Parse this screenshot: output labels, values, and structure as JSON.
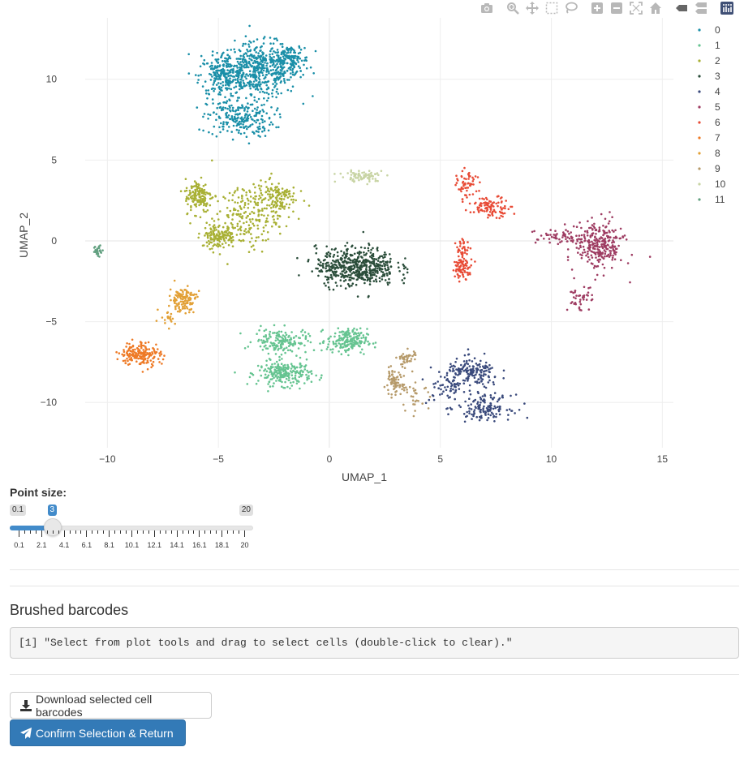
{
  "modebar": {
    "buttons": [
      {
        "name": "camera-icon"
      },
      {
        "name": "zoom-icon"
      },
      {
        "name": "pan-icon"
      },
      {
        "name": "box-select-icon"
      },
      {
        "name": "lasso-select-icon"
      },
      {
        "name": "zoom-in-icon"
      },
      {
        "name": "zoom-out-icon"
      },
      {
        "name": "autoscale-icon"
      },
      {
        "name": "reset-axes-icon"
      },
      {
        "name": "hover-closest-icon"
      },
      {
        "name": "hover-compare-icon"
      },
      {
        "name": "plotly-logo-icon"
      }
    ]
  },
  "plot": {
    "xlabel": "UMAP_1",
    "ylabel": "UMAP_2",
    "x_ticks": [
      "−10",
      "−5",
      "0",
      "5",
      "10",
      "15"
    ],
    "y_ticks": [
      "10",
      "5",
      "0",
      "−5",
      "−10"
    ]
  },
  "chart_data": {
    "type": "scatter",
    "xlabel": "UMAP_1",
    "ylabel": "UMAP_2",
    "xlim": [
      -11,
      15.5
    ],
    "ylim": [
      -12.8,
      13.8
    ],
    "x_tick_values": [
      -10,
      -5,
      0,
      5,
      10,
      15
    ],
    "y_tick_values": [
      10,
      5,
      0,
      -5,
      -10
    ],
    "grid": true,
    "legend_position": "top-right",
    "series": [
      {
        "name": "0",
        "color": "#1a8fa8",
        "clusters": [
          {
            "cx": -3.2,
            "cy": 10.6,
            "sx": 1.2,
            "sy": 1.1,
            "n": 500
          },
          {
            "cx": -4.8,
            "cy": 10.2,
            "sx": 0.7,
            "sy": 0.9,
            "n": 200
          },
          {
            "cx": -4.0,
            "cy": 7.6,
            "sx": 1.0,
            "sy": 0.8,
            "n": 230
          },
          {
            "cx": -1.8,
            "cy": 11.2,
            "sx": 0.6,
            "sy": 0.6,
            "n": 130
          }
        ]
      },
      {
        "name": "1",
        "color": "#66c491",
        "clusters": [
          {
            "cx": -2.0,
            "cy": -8.2,
            "sx": 0.8,
            "sy": 0.5,
            "n": 240
          },
          {
            "cx": -2.2,
            "cy": -6.2,
            "sx": 0.8,
            "sy": 0.5,
            "n": 160
          },
          {
            "cx": 0.8,
            "cy": -6.2,
            "sx": 0.6,
            "sy": 0.5,
            "n": 190
          }
        ]
      },
      {
        "name": "2",
        "color": "#a8b034",
        "clusters": [
          {
            "cx": -5.9,
            "cy": 2.8,
            "sx": 0.4,
            "sy": 0.7,
            "n": 140
          },
          {
            "cx": -5.0,
            "cy": 0.3,
            "sx": 0.5,
            "sy": 0.5,
            "n": 130
          },
          {
            "cx": -3.8,
            "cy": 1.5,
            "sx": 1.0,
            "sy": 1.3,
            "n": 200
          },
          {
            "cx": -2.4,
            "cy": 2.7,
            "sx": 0.6,
            "sy": 0.7,
            "n": 140
          }
        ]
      },
      {
        "name": "3",
        "color": "#2a4d3a",
        "clusters": [
          {
            "cx": 1.2,
            "cy": -1.6,
            "sx": 1.2,
            "sy": 0.8,
            "n": 520
          }
        ]
      },
      {
        "name": "4",
        "color": "#3a4a7c",
        "clusters": [
          {
            "cx": 6.5,
            "cy": -8.2,
            "sx": 0.8,
            "sy": 0.6,
            "n": 170
          },
          {
            "cx": 7.0,
            "cy": -10.3,
            "sx": 0.8,
            "sy": 0.5,
            "n": 140
          },
          {
            "cx": 5.3,
            "cy": -9.0,
            "sx": 0.6,
            "sy": 0.8,
            "n": 60
          }
        ]
      },
      {
        "name": "5",
        "color": "#9e3c62",
        "clusters": [
          {
            "cx": 12.2,
            "cy": -0.3,
            "sx": 0.7,
            "sy": 1.0,
            "n": 260
          },
          {
            "cx": 10.5,
            "cy": 0.2,
            "sx": 0.8,
            "sy": 0.4,
            "n": 70
          },
          {
            "cx": 11.3,
            "cy": -3.6,
            "sx": 0.4,
            "sy": 0.5,
            "n": 40
          }
        ]
      },
      {
        "name": "6",
        "color": "#e84b36",
        "clusters": [
          {
            "cx": 6.2,
            "cy": 3.4,
            "sx": 0.3,
            "sy": 0.6,
            "n": 60
          },
          {
            "cx": 7.3,
            "cy": 2.1,
            "sx": 0.6,
            "sy": 0.4,
            "n": 100
          },
          {
            "cx": 6.0,
            "cy": -0.6,
            "sx": 0.2,
            "sy": 0.5,
            "n": 40
          },
          {
            "cx": 6.0,
            "cy": -1.7,
            "sx": 0.3,
            "sy": 0.4,
            "n": 70
          }
        ]
      },
      {
        "name": "7",
        "color": "#ee7a26",
        "clusters": [
          {
            "cx": -8.5,
            "cy": -7.0,
            "sx": 0.6,
            "sy": 0.5,
            "n": 180
          }
        ]
      },
      {
        "name": "8",
        "color": "#e2a036",
        "clusters": [
          {
            "cx": -6.6,
            "cy": -3.6,
            "sx": 0.4,
            "sy": 0.5,
            "n": 130
          },
          {
            "cx": -7.4,
            "cy": -4.9,
            "sx": 0.3,
            "sy": 0.3,
            "n": 20
          }
        ]
      },
      {
        "name": "9",
        "color": "#b69a6a",
        "clusters": [
          {
            "cx": 2.9,
            "cy": -8.8,
            "sx": 0.3,
            "sy": 0.5,
            "n": 70
          },
          {
            "cx": 3.5,
            "cy": -7.3,
            "sx": 0.3,
            "sy": 0.4,
            "n": 40
          },
          {
            "cx": 3.9,
            "cy": -9.6,
            "sx": 0.4,
            "sy": 0.5,
            "n": 30
          }
        ]
      },
      {
        "name": "10",
        "color": "#c8d4a4",
        "clusters": [
          {
            "cx": 1.5,
            "cy": 4.0,
            "sx": 0.7,
            "sy": 0.25,
            "n": 80
          }
        ]
      },
      {
        "name": "11",
        "color": "#62a080",
        "clusters": [
          {
            "cx": -10.4,
            "cy": -0.6,
            "sx": 0.15,
            "sy": 0.25,
            "n": 28
          }
        ]
      }
    ]
  },
  "slider": {
    "label": "Point size:",
    "min": 0.1,
    "max": 20,
    "value": 3,
    "min_label": "0.1",
    "max_label": "20",
    "value_label": "3",
    "grid_labels": [
      "0.1",
      "2.1",
      "4.1",
      "6.1",
      "8.1",
      "10.1",
      "12.1",
      "14.1",
      "16.1",
      "18.1",
      "20"
    ]
  },
  "brushed": {
    "title": "Brushed barcodes",
    "output": "[1] \"Select from plot tools and drag to select cells (double-click to clear).\""
  },
  "buttons": {
    "download_label": "Download selected cell barcodes",
    "confirm_label": "Confirm Selection & Return"
  }
}
